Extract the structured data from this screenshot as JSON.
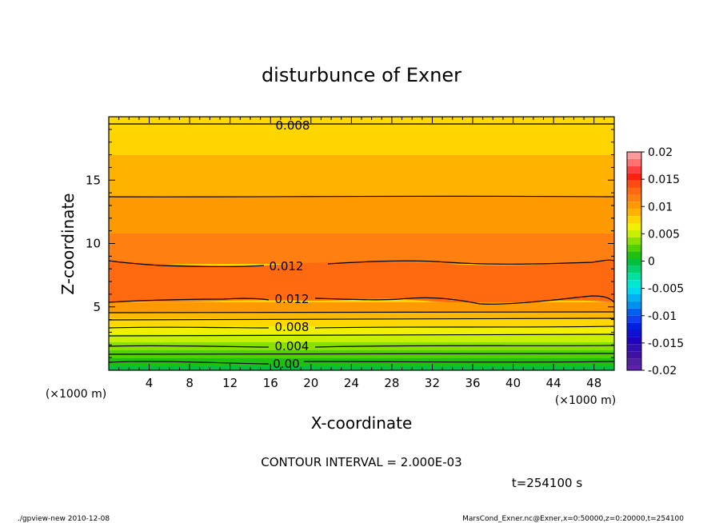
{
  "chart_data": {
    "type": "heatmap",
    "title": "disturbunce of Exner",
    "xlabel": "X-coordinate",
    "ylabel": "Z-coordinate",
    "x_unit": "(×1000 m)",
    "y_unit": "(×1000 m)",
    "xlim": [
      0,
      50
    ],
    "ylim": [
      0,
      20
    ],
    "x_ticks": [
      4,
      8,
      12,
      16,
      20,
      24,
      28,
      32,
      36,
      40,
      44,
      48
    ],
    "y_ticks": [
      5,
      10,
      15
    ],
    "colorbar": {
      "ticks": [
        0.02,
        0.015,
        0.01,
        0.005,
        0,
        -0.005,
        -0.01,
        -0.015,
        -0.02
      ],
      "range": [
        -0.02,
        0.02
      ]
    },
    "field_profile_z": [
      {
        "z": 0.0,
        "value": 0.0
      },
      {
        "z": 0.8,
        "value": 0.002
      },
      {
        "z": 1.6,
        "value": 0.004
      },
      {
        "z": 2.4,
        "value": 0.006
      },
      {
        "z": 3.4,
        "value": 0.008
      },
      {
        "z": 4.4,
        "value": 0.01
      },
      {
        "z": 5.5,
        "value": 0.012
      },
      {
        "z": 7.0,
        "value": 0.0125
      },
      {
        "z": 8.4,
        "value": 0.012
      },
      {
        "z": 10.7,
        "value": 0.0105
      },
      {
        "z": 13.6,
        "value": 0.01
      },
      {
        "z": 16.8,
        "value": 0.0085
      },
      {
        "z": 19.2,
        "value": 0.008
      },
      {
        "z": 20.0,
        "value": 0.0075
      }
    ],
    "contour_labels": [
      "0.008",
      "0.012",
      "0.012",
      "0.008",
      "0.004",
      "0.00"
    ],
    "contour_interval_text": "CONTOUR INTERVAL = 2.000E-03",
    "time_text": "t=254100 s"
  },
  "footer": {
    "left": "./gpview-new   2010-12-08",
    "right": "MarsCond_Exner.nc@Exner,x=0:50000,z=0:20000,t=254100"
  }
}
